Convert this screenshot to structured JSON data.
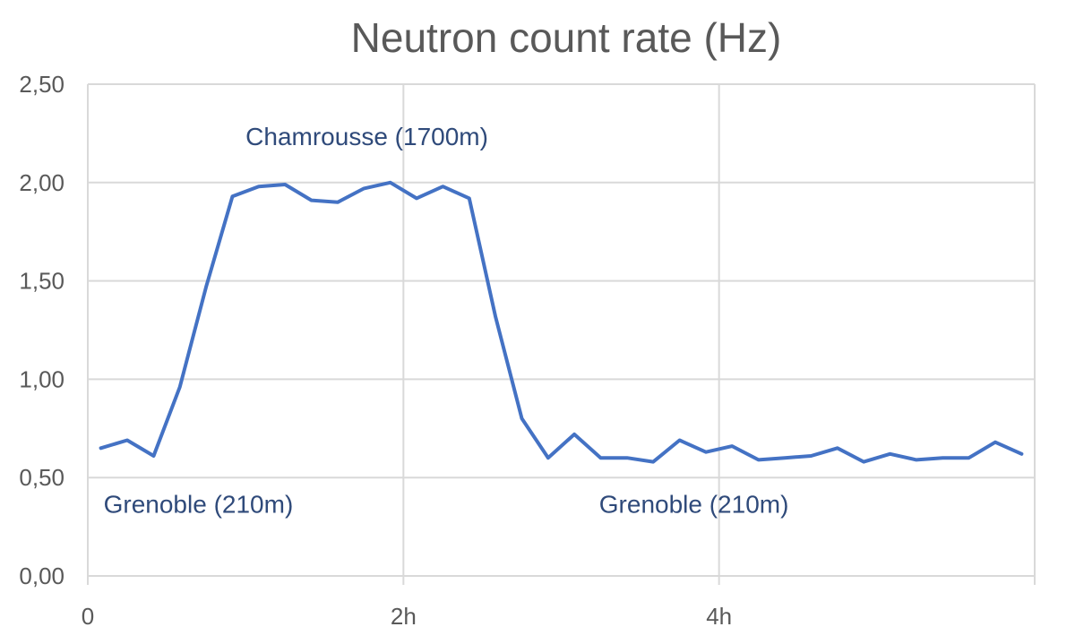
{
  "chart_data": {
    "type": "line",
    "title": "Neutron count rate (Hz)",
    "xlabel": "",
    "ylabel": "",
    "xlim": [
      0,
      6
    ],
    "ylim": [
      0,
      2.5
    ],
    "x_ticks": [
      {
        "value": 0,
        "label": "0"
      },
      {
        "value": 2,
        "label": "2h"
      },
      {
        "value": 4,
        "label": "4h"
      }
    ],
    "y_ticks": [
      {
        "value": 0,
        "label": "0,00"
      },
      {
        "value": 0.5,
        "label": "0,50"
      },
      {
        "value": 1,
        "label": "1,00"
      },
      {
        "value": 1.5,
        "label": "1,50"
      },
      {
        "value": 2,
        "label": "2,00"
      },
      {
        "value": 2.5,
        "label": "2,50"
      }
    ],
    "grid": true,
    "series": [
      {
        "name": "Neutron count rate",
        "color": "#4472c4",
        "x": [
          0.083,
          0.25,
          0.417,
          0.583,
          0.75,
          0.917,
          1.083,
          1.25,
          1.417,
          1.583,
          1.75,
          1.917,
          2.083,
          2.25,
          2.417,
          2.583,
          2.75,
          2.917,
          3.083,
          3.25,
          3.417,
          3.583,
          3.75,
          3.917,
          4.083,
          4.25,
          4.417,
          4.583,
          4.75,
          4.917,
          5.083,
          5.25,
          5.417,
          5.583,
          5.75,
          5.917
        ],
        "values": [
          0.65,
          0.69,
          0.61,
          0.96,
          1.47,
          1.93,
          1.98,
          1.99,
          1.91,
          1.9,
          1.97,
          2.0,
          1.92,
          1.98,
          1.92,
          1.32,
          0.8,
          0.6,
          0.72,
          0.6,
          0.6,
          0.58,
          0.69,
          0.63,
          0.66,
          0.59,
          0.6,
          0.61,
          0.65,
          0.58,
          0.62,
          0.59,
          0.6,
          0.6,
          0.68,
          0.62
        ]
      }
    ],
    "annotations": [
      {
        "text": "Chamrousse (1700m)",
        "x": 1.0,
        "y": 2.19
      },
      {
        "text": "Grenoble (210m)",
        "x": 0.1,
        "y": 0.32
      },
      {
        "text": "Grenoble (210m)",
        "x": 3.24,
        "y": 0.32
      }
    ]
  }
}
